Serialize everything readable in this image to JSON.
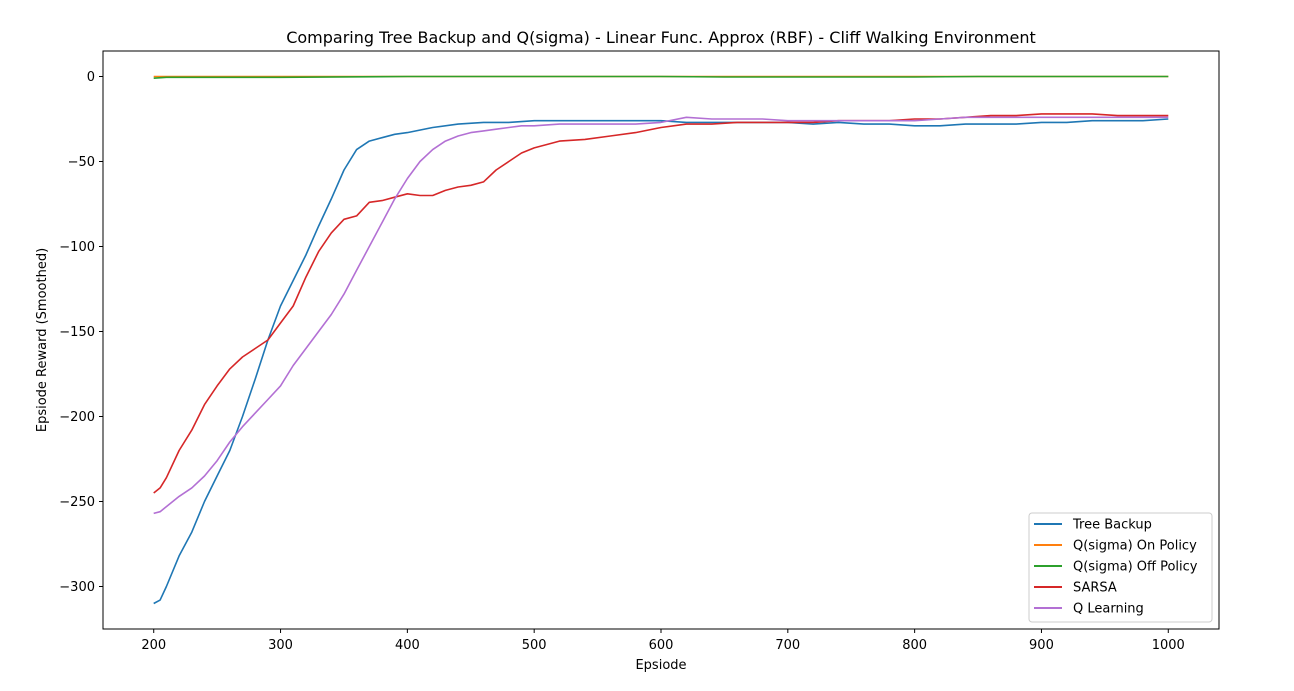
{
  "chart_data": {
    "type": "line",
    "title": "Comparing Tree Backup and Q(sigma) - Linear Func. Approx (RBF) - Cliff Walking Environment",
    "xlabel": "Epsiode",
    "ylabel": "Epsiode Reward (Smoothed)",
    "xlim": [
      160,
      1040
    ],
    "ylim": [
      -325,
      15
    ],
    "xticks": [
      200,
      300,
      400,
      500,
      600,
      700,
      800,
      900,
      1000
    ],
    "yticks": [
      0,
      -50,
      -100,
      -150,
      -200,
      -250,
      -300
    ],
    "xtick_labels": [
      "200",
      "300",
      "400",
      "500",
      "600",
      "700",
      "800",
      "900",
      "1000"
    ],
    "ytick_labels": [
      "0",
      "−50",
      "−100",
      "−150",
      "−200",
      "−250",
      "−300"
    ],
    "grid": false,
    "legend_position": "bottom-right",
    "series": [
      {
        "name": "Tree Backup",
        "color": "#1f77b4",
        "x": [
          200,
          205,
          210,
          220,
          230,
          240,
          250,
          260,
          270,
          280,
          290,
          300,
          310,
          320,
          330,
          340,
          350,
          360,
          370,
          380,
          390,
          400,
          420,
          440,
          460,
          480,
          500,
          520,
          540,
          560,
          580,
          600,
          620,
          640,
          660,
          680,
          700,
          720,
          740,
          760,
          780,
          800,
          820,
          840,
          860,
          880,
          900,
          920,
          940,
          960,
          980,
          1000
        ],
        "y": [
          -310,
          -308,
          -300,
          -282,
          -268,
          -250,
          -235,
          -220,
          -200,
          -178,
          -155,
          -135,
          -120,
          -105,
          -88,
          -72,
          -55,
          -43,
          -38,
          -36,
          -34,
          -33,
          -30,
          -28,
          -27,
          -27,
          -26,
          -26,
          -26,
          -26,
          -26,
          -26,
          -27,
          -27,
          -27,
          -27,
          -27,
          -28,
          -27,
          -28,
          -28,
          -29,
          -29,
          -28,
          -28,
          -28,
          -27,
          -27,
          -26,
          -26,
          -26,
          -25
        ]
      },
      {
        "name": "Q(sigma) On Policy",
        "color": "#ff7f0e",
        "x": [
          200,
          300,
          400,
          500,
          600,
          700,
          800,
          900,
          1000
        ],
        "y": [
          0,
          0,
          0,
          0,
          0,
          0,
          0,
          0,
          0
        ]
      },
      {
        "name": "Q(sigma) Off Policy",
        "color": "#2ca02c",
        "x": [
          200,
          210,
          300,
          400,
          500,
          600,
          650,
          700,
          800,
          850,
          900,
          1000
        ],
        "y": [
          -1,
          -0.5,
          -0.5,
          0,
          0,
          0,
          -0.3,
          -0.3,
          -0.3,
          0,
          0,
          0
        ]
      },
      {
        "name": "SARSA",
        "color": "#d62728",
        "x": [
          200,
          205,
          210,
          220,
          230,
          240,
          250,
          260,
          270,
          280,
          290,
          300,
          310,
          320,
          330,
          340,
          350,
          360,
          370,
          380,
          390,
          400,
          410,
          420,
          430,
          440,
          450,
          460,
          470,
          480,
          490,
          500,
          510,
          520,
          540,
          560,
          580,
          600,
          620,
          640,
          660,
          680,
          700,
          720,
          740,
          760,
          780,
          800,
          820,
          840,
          860,
          880,
          900,
          920,
          940,
          960,
          980,
          1000
        ],
        "y": [
          -245,
          -242,
          -236,
          -220,
          -208,
          -193,
          -182,
          -172,
          -165,
          -160,
          -155,
          -145,
          -135,
          -118,
          -103,
          -92,
          -84,
          -82,
          -74,
          -73,
          -71,
          -69,
          -70,
          -70,
          -67,
          -65,
          -64,
          -62,
          -55,
          -50,
          -45,
          -42,
          -40,
          -38,
          -37,
          -35,
          -33,
          -30,
          -28,
          -28,
          -27,
          -27,
          -27,
          -27,
          -26,
          -26,
          -26,
          -25,
          -25,
          -24,
          -23,
          -23,
          -22,
          -22,
          -22,
          -23,
          -23,
          -23
        ]
      },
      {
        "name": "Q Learning",
        "color": "#b370d4",
        "x": [
          200,
          205,
          210,
          220,
          230,
          240,
          250,
          260,
          270,
          280,
          290,
          300,
          310,
          320,
          330,
          340,
          350,
          360,
          370,
          380,
          390,
          400,
          410,
          420,
          430,
          440,
          450,
          460,
          470,
          480,
          490,
          500,
          520,
          540,
          560,
          580,
          600,
          620,
          640,
          660,
          680,
          700,
          720,
          740,
          760,
          780,
          800,
          820,
          840,
          860,
          880,
          900,
          920,
          940,
          960,
          980,
          1000
        ],
        "y": [
          -257,
          -256,
          -253,
          -247,
          -242,
          -235,
          -226,
          -215,
          -206,
          -198,
          -190,
          -182,
          -170,
          -160,
          -150,
          -140,
          -128,
          -114,
          -100,
          -86,
          -72,
          -60,
          -50,
          -43,
          -38,
          -35,
          -33,
          -32,
          -31,
          -30,
          -29,
          -29,
          -28,
          -28,
          -28,
          -28,
          -27,
          -24,
          -25,
          -25,
          -25,
          -26,
          -26,
          -26,
          -26,
          -26,
          -26,
          -25,
          -24,
          -24,
          -24,
          -24,
          -24,
          -24,
          -24,
          -24,
          -24
        ]
      }
    ]
  }
}
